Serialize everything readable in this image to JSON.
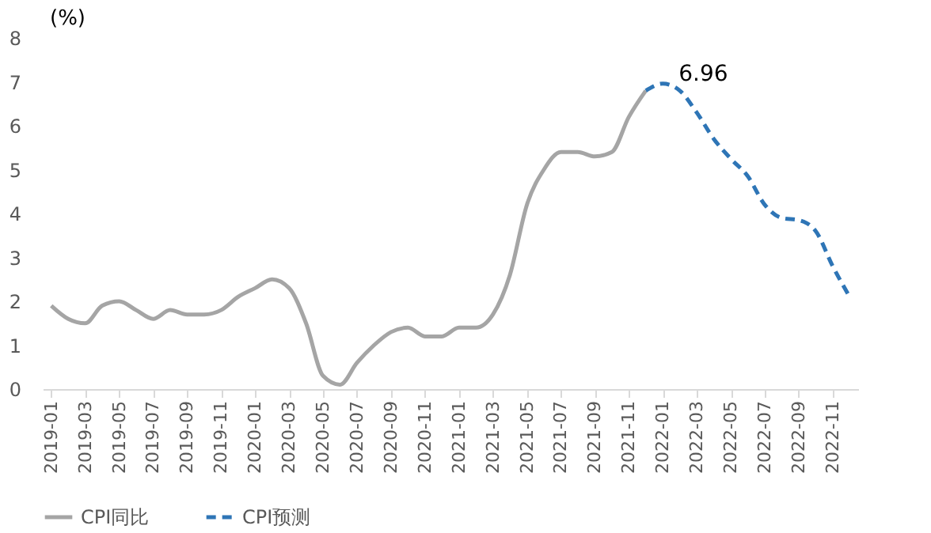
{
  "chart_data": {
    "type": "line",
    "ylabel": "(%)",
    "categories": [
      "2019-01",
      null,
      "2019-03",
      null,
      "2019-05",
      null,
      "2019-07",
      null,
      "2019-09",
      null,
      "2019-11",
      null,
      "2020-01",
      null,
      "2020-03",
      null,
      "2020-05",
      null,
      "2020-07",
      null,
      "2020-09",
      null,
      "2020-11",
      null,
      "2021-01",
      null,
      "2021-03",
      null,
      "2021-05",
      null,
      "2021-07",
      null,
      "2021-09",
      null,
      "2021-11",
      null,
      "2022-01",
      null,
      "2022-03",
      null,
      "2022-05",
      null,
      "2022-07",
      null,
      "2022-09",
      null,
      "2022-11",
      null
    ],
    "series": [
      {
        "name": "CPI同比",
        "color": "#a5a5a5",
        "line_style": "solid",
        "values": [
          1.9,
          1.6,
          1.5,
          1.9,
          2.0,
          1.8,
          1.6,
          1.8,
          1.7,
          1.7,
          1.8,
          2.1,
          2.3,
          2.5,
          2.3,
          1.5,
          0.3,
          0.1,
          0.6,
          1.0,
          1.3,
          1.4,
          1.2,
          1.2,
          1.4,
          1.4,
          1.7,
          2.6,
          4.2,
          5.0,
          5.4,
          5.4,
          5.3,
          5.4,
          6.2,
          6.8,
          null,
          null,
          null,
          null,
          null,
          null,
          null,
          null,
          null,
          null,
          null,
          null
        ]
      },
      {
        "name": "CPI预测",
        "color": "#2e75b6",
        "line_style": "dashed",
        "values": [
          null,
          null,
          null,
          null,
          null,
          null,
          null,
          null,
          null,
          null,
          null,
          null,
          null,
          null,
          null,
          null,
          null,
          null,
          null,
          null,
          null,
          null,
          null,
          null,
          null,
          null,
          null,
          null,
          null,
          null,
          null,
          null,
          null,
          null,
          null,
          6.8,
          6.96,
          6.8,
          6.3,
          5.7,
          5.25,
          4.85,
          4.2,
          3.9,
          3.85,
          3.6,
          2.8,
          2.1
        ]
      }
    ],
    "ylim": [
      0,
      8
    ],
    "yticks": [
      0,
      1,
      2,
      3,
      4,
      5,
      6,
      7,
      8
    ],
    "grid": false,
    "legend": "bottom",
    "annotations": [
      {
        "text": "6.96",
        "x": "2022-01",
        "y": 6.96
      }
    ]
  }
}
